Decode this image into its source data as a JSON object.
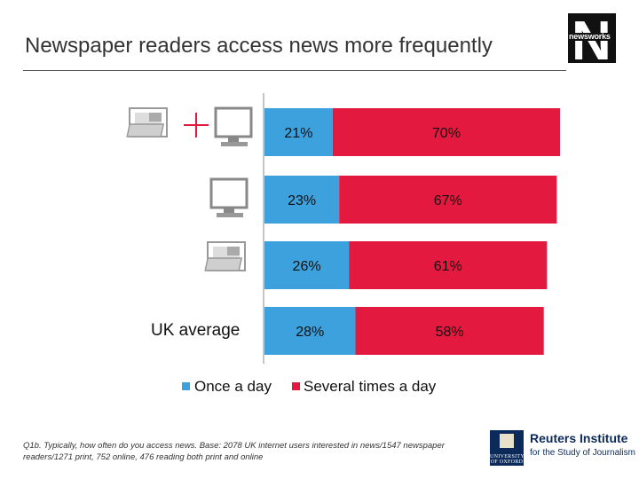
{
  "title": "Newspaper readers access news more frequently",
  "logo_word": "newsworks",
  "icons": {
    "row1": [
      "newspaper-icon",
      "plus-icon",
      "computer-monitor-icon"
    ],
    "row2": [
      "computer-monitor-icon"
    ],
    "row3": [
      "newspaper-icon"
    ]
  },
  "row4_label": "UK average",
  "legend": {
    "once": "Once a day",
    "several": "Several times a day"
  },
  "colors": {
    "once": "#3ca1dc",
    "several": "#e3193f"
  },
  "chart_data": {
    "type": "bar",
    "orientation": "horizontal",
    "stacked": true,
    "categories": [
      "",
      "",
      "",
      "UK average"
    ],
    "series": [
      {
        "name": "Once a day",
        "values": [
          21,
          23,
          26,
          28
        ],
        "labels": [
          "21%",
          "23%",
          "26%",
          "28%"
        ]
      },
      {
        "name": "Several times a day",
        "values": [
          70,
          67,
          61,
          58
        ],
        "labels": [
          "70%",
          "67%",
          "61%",
          "58%"
        ]
      }
    ],
    "xlim": [
      0,
      91
    ],
    "legend": "bottom",
    "grid": false
  },
  "footnote": "Q1b. Typically, how often do you access news. Base: 2078 UK internet users interested in news/1547 newspaper readers/1271 print, 752 online, 476 reading both print and online",
  "oxford_logo_text": "UNIVERSITY OF OXFORD",
  "reuters": {
    "title": "Reuters Institute",
    "subtitle": "for the Study of Journalism"
  }
}
